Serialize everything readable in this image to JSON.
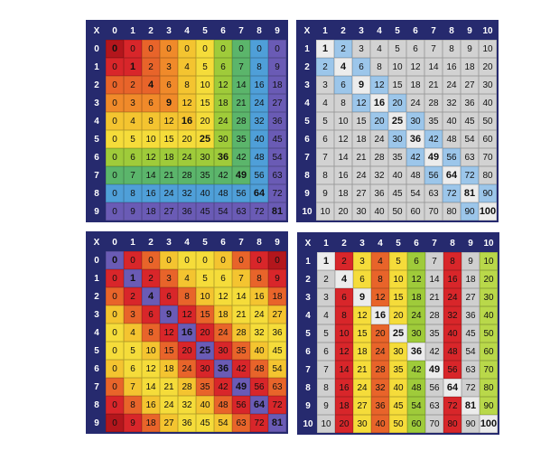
{
  "boards": [
    {
      "header": [
        "X",
        0,
        1,
        2,
        3,
        4,
        5,
        6,
        7,
        8,
        9
      ],
      "rows": [
        [
          0,
          0,
          0,
          0,
          0,
          0,
          0,
          0,
          0,
          0,
          0
        ],
        [
          1,
          0,
          1,
          2,
          3,
          4,
          5,
          6,
          7,
          8,
          9
        ],
        [
          2,
          0,
          2,
          4,
          6,
          8,
          10,
          12,
          14,
          16,
          18
        ],
        [
          3,
          0,
          3,
          6,
          9,
          12,
          15,
          18,
          21,
          24,
          27
        ],
        [
          4,
          0,
          4,
          8,
          12,
          16,
          20,
          24,
          28,
          32,
          36
        ],
        [
          5,
          0,
          5,
          10,
          15,
          20,
          25,
          30,
          35,
          40,
          45
        ],
        [
          6,
          0,
          6,
          12,
          18,
          24,
          30,
          36,
          42,
          48,
          54
        ],
        [
          7,
          0,
          7,
          14,
          21,
          28,
          35,
          42,
          49,
          56,
          63
        ],
        [
          8,
          0,
          8,
          16,
          24,
          32,
          40,
          48,
          56,
          64,
          72
        ],
        [
          9,
          0,
          9,
          18,
          27,
          36,
          45,
          54,
          63,
          72,
          81
        ]
      ]
    },
    {
      "header": [
        "X",
        1,
        2,
        3,
        4,
        5,
        6,
        7,
        8,
        9,
        10
      ],
      "rows": [
        [
          1,
          1,
          2,
          3,
          4,
          5,
          6,
          7,
          8,
          9,
          10
        ],
        [
          2,
          2,
          4,
          6,
          8,
          10,
          12,
          14,
          16,
          18,
          20
        ],
        [
          3,
          3,
          6,
          9,
          12,
          15,
          18,
          21,
          24,
          27,
          30
        ],
        [
          4,
          4,
          8,
          12,
          16,
          20,
          24,
          28,
          32,
          36,
          40
        ],
        [
          5,
          5,
          10,
          15,
          20,
          25,
          30,
          35,
          40,
          45,
          50
        ],
        [
          6,
          6,
          12,
          18,
          24,
          30,
          36,
          42,
          48,
          54,
          60
        ],
        [
          7,
          7,
          14,
          21,
          28,
          35,
          42,
          49,
          56,
          63,
          70
        ],
        [
          8,
          8,
          16,
          24,
          32,
          40,
          48,
          56,
          64,
          72,
          80
        ],
        [
          9,
          9,
          18,
          27,
          36,
          45,
          54,
          63,
          72,
          81,
          90
        ],
        [
          10,
          10,
          20,
          30,
          40,
          50,
          60,
          70,
          80,
          90,
          100
        ]
      ]
    },
    {
      "header": [
        "X",
        0,
        1,
        2,
        3,
        4,
        5,
        6,
        7,
        8,
        9
      ],
      "rows": [
        [
          0,
          0,
          0,
          0,
          0,
          0,
          0,
          0,
          0,
          0,
          0
        ],
        [
          1,
          0,
          1,
          2,
          3,
          4,
          5,
          6,
          7,
          8,
          9
        ],
        [
          2,
          0,
          2,
          4,
          6,
          8,
          10,
          12,
          14,
          16,
          18
        ],
        [
          3,
          0,
          3,
          6,
          9,
          12,
          15,
          18,
          21,
          24,
          27
        ],
        [
          4,
          0,
          4,
          8,
          12,
          16,
          20,
          24,
          28,
          32,
          36
        ],
        [
          5,
          0,
          5,
          10,
          15,
          20,
          25,
          30,
          35,
          40,
          45
        ],
        [
          6,
          0,
          6,
          12,
          18,
          24,
          30,
          36,
          42,
          48,
          54
        ],
        [
          7,
          0,
          7,
          14,
          21,
          28,
          35,
          42,
          49,
          56,
          63
        ],
        [
          8,
          0,
          8,
          16,
          24,
          32,
          40,
          48,
          56,
          64,
          72
        ],
        [
          9,
          0,
          9,
          18,
          27,
          36,
          45,
          54,
          63,
          72,
          81
        ]
      ]
    },
    {
      "header": [
        "X",
        1,
        2,
        3,
        4,
        5,
        6,
        7,
        8,
        9,
        10
      ],
      "rows": [
        [
          1,
          1,
          2,
          3,
          4,
          5,
          6,
          7,
          8,
          9,
          10
        ],
        [
          2,
          2,
          4,
          6,
          8,
          10,
          12,
          14,
          16,
          18,
          20
        ],
        [
          3,
          3,
          6,
          9,
          12,
          15,
          18,
          21,
          24,
          27,
          30
        ],
        [
          4,
          4,
          8,
          12,
          16,
          20,
          24,
          28,
          32,
          36,
          40
        ],
        [
          5,
          5,
          10,
          15,
          20,
          25,
          30,
          35,
          40,
          45,
          50
        ],
        [
          6,
          6,
          12,
          18,
          24,
          30,
          36,
          42,
          48,
          54,
          60
        ],
        [
          7,
          7,
          14,
          21,
          28,
          35,
          42,
          49,
          56,
          63,
          70
        ],
        [
          8,
          8,
          16,
          24,
          32,
          40,
          48,
          56,
          64,
          72,
          80
        ],
        [
          9,
          9,
          18,
          27,
          36,
          45,
          54,
          63,
          72,
          81,
          90
        ],
        [
          10,
          10,
          20,
          30,
          40,
          50,
          60,
          70,
          80,
          90,
          100
        ]
      ]
    }
  ]
}
